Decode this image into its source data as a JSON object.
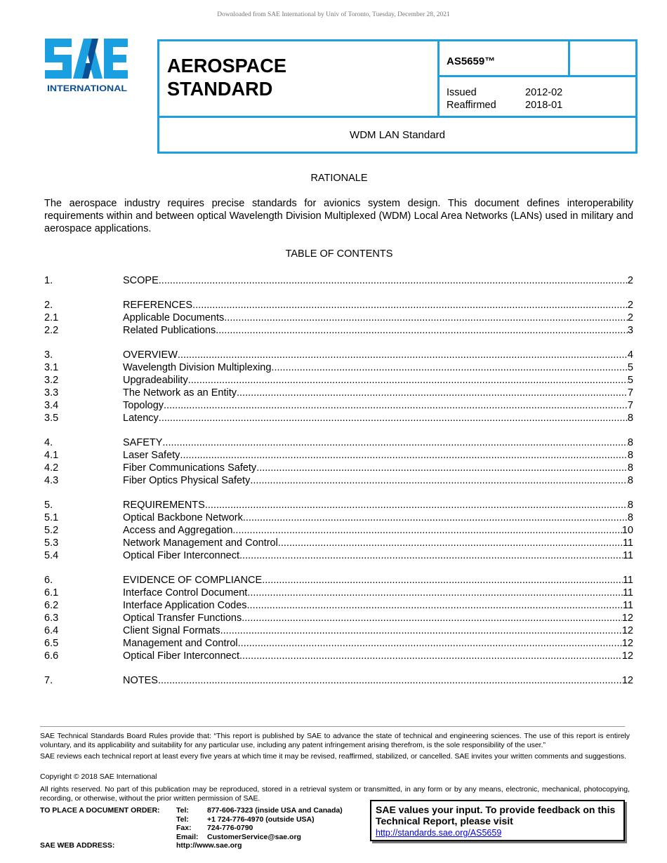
{
  "download_note": "Downloaded from SAE International by Univ of Toronto, Tuesday, December 28, 2021",
  "logo": {
    "letters": "SAE",
    "sub": "INTERNATIONAL",
    "colors": {
      "light": "#1a9fe0",
      "dark": "#0a4f94"
    }
  },
  "header": {
    "title_line1": "AEROSPACE",
    "title_line2": "STANDARD",
    "standard_id": "AS5659™",
    "issued_label": "Issued",
    "issued": "2012-02",
    "reaffirmed_label": "Reaffirmed",
    "reaffirmed": "2018-01",
    "doc_title": "WDM LAN Standard",
    "border_color": "#1f9fe3"
  },
  "rationale": {
    "heading": "RATIONALE",
    "text": "The aerospace industry requires precise standards for avionics system design. This document defines interoperability requirements within and between optical Wavelength Division Multiplexed (WDM) Local Area Networks (LANs) used in military and aerospace applications."
  },
  "toc": {
    "heading": "TABLE OF CONTENTS",
    "groups": [
      [
        {
          "num": "1.",
          "title": "SCOPE",
          "page": "2"
        }
      ],
      [
        {
          "num": "2.",
          "title": "REFERENCES",
          "page": "2"
        },
        {
          "num": "2.1",
          "title": "Applicable Documents ",
          "page": "2"
        },
        {
          "num": "2.2",
          "title": "Related Publications ",
          "page": "3"
        }
      ],
      [
        {
          "num": "3.",
          "title": "OVERVIEW",
          "page": "4"
        },
        {
          "num": "3.1",
          "title": "Wavelength Division Multiplexing ",
          "page": "5"
        },
        {
          "num": "3.2",
          "title": "Upgradeability ",
          "page": "5"
        },
        {
          "num": "3.3",
          "title": "The Network as an Entity",
          "page": "7"
        },
        {
          "num": "3.4",
          "title": "Topology ",
          "page": "7"
        },
        {
          "num": "3.5",
          "title": "Latency",
          "page": "8"
        }
      ],
      [
        {
          "num": "4.",
          "title": "SAFETY ",
          "page": "8"
        },
        {
          "num": "4.1",
          "title": "Laser Safety",
          "page": "8"
        },
        {
          "num": "4.2",
          "title": "Fiber Communications Safety",
          "page": "8"
        },
        {
          "num": "4.3",
          "title": "Fiber Optics Physical Safety ",
          "page": "8"
        }
      ],
      [
        {
          "num": "5.",
          "title": "REQUIREMENTS ",
          "page": "8"
        },
        {
          "num": "5.1",
          "title": "Optical Backbone Network",
          "page": "8"
        },
        {
          "num": "5.2",
          "title": "Access and Aggregation ",
          "page": "10"
        },
        {
          "num": "5.3",
          "title": "Network Management and Control ",
          "page": "11"
        },
        {
          "num": "5.4",
          "title": "Optical Fiber Interconnect",
          "page": "11"
        }
      ],
      [
        {
          "num": "6.",
          "title": "EVIDENCE OF COMPLIANCE",
          "page": "11"
        },
        {
          "num": "6.1",
          "title": "Interface Control Document ",
          "page": "11"
        },
        {
          "num": "6.2",
          "title": "Interface Application Codes ",
          "page": "11"
        },
        {
          "num": "6.3",
          "title": "Optical Transfer Functions",
          "page": "12"
        },
        {
          "num": "6.4",
          "title": "Client Signal Formats",
          "page": "12"
        },
        {
          "num": "6.5",
          "title": "Management and Control ",
          "page": "12"
        },
        {
          "num": "6.6",
          "title": "Optical Fiber Interconnect",
          "page": "12"
        }
      ],
      [
        {
          "num": "7.",
          "title": "NOTES ",
          "page": "12"
        }
      ]
    ]
  },
  "footer": {
    "rules": "SAE Technical Standards Board Rules provide that: “This report is published by SAE to advance the state of technical and engineering sciences. The use of this report is entirely voluntary, and its applicability and suitability for any particular use, including any patent infringement arising therefrom, is the sole responsibility of the user.”",
    "review": "SAE reviews each technical report at least every five years at which time it may be revised, reaffirmed, stabilized, or cancelled. SAE invites your written comments and suggestions.",
    "copyright": "Copyright © 2018 SAE International",
    "rights": "All rights reserved. No part of this publication may be reproduced, stored in a retrieval system or transmitted, in any form or by any means, electronic, mechanical, photocopying, recording, or otherwise, without the prior written permission of SAE.",
    "order_label": "TO PLACE A DOCUMENT ORDER:",
    "contacts": [
      {
        "label": "Tel:",
        "value": "877-606-7323 (inside USA and Canada)"
      },
      {
        "label": "Tel:",
        "value": "+1 724-776-4970 (outside USA)"
      },
      {
        "label": "Fax:",
        "value": "724-776-0790"
      },
      {
        "label": "Email:",
        "value": "CustomerService@sae.org"
      }
    ],
    "web_label": "SAE WEB ADDRESS:",
    "web": "http://www.sae.org",
    "feedback": {
      "message": "SAE values your input. To provide feedback on this Technical Report, please visit",
      "link": "http://standards.sae.org/AS5659"
    }
  }
}
